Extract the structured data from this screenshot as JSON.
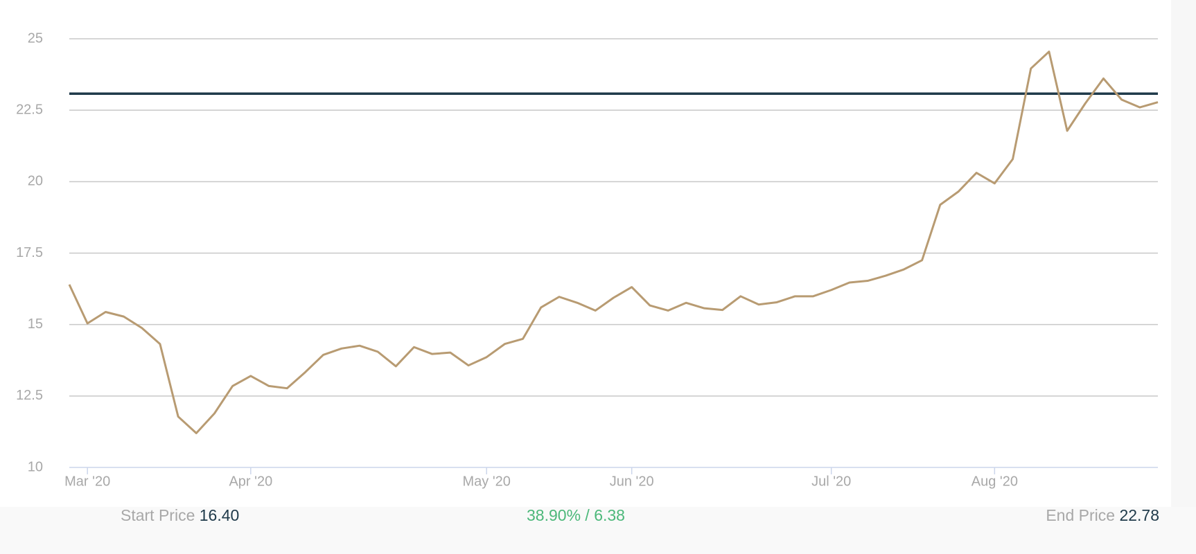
{
  "chart_data": {
    "type": "line",
    "categories": [
      null,
      "Mar '20",
      null,
      null,
      null,
      null,
      null,
      null,
      null,
      null,
      "Apr '20",
      null,
      null,
      null,
      null,
      null,
      null,
      null,
      null,
      null,
      null,
      null,
      null,
      "May '20",
      null,
      null,
      null,
      null,
      null,
      null,
      null,
      "Jun '20",
      null,
      null,
      null,
      null,
      null,
      null,
      null,
      null,
      null,
      null,
      "Jul '20",
      null,
      null,
      null,
      null,
      null,
      null,
      null,
      null,
      "Aug '20",
      null,
      null,
      null,
      null,
      null,
      null,
      null,
      null,
      null
    ],
    "series": [
      {
        "name": "Price",
        "color": "#b89b72",
        "values": [
          16.4,
          15.04,
          15.44,
          15.28,
          14.88,
          14.32,
          11.78,
          11.2,
          11.89,
          12.85,
          13.2,
          12.85,
          12.77,
          13.33,
          13.94,
          14.16,
          14.26,
          14.05,
          13.54,
          14.21,
          13.97,
          14.02,
          13.57,
          13.86,
          14.32,
          14.5,
          15.6,
          15.97,
          15.76,
          15.49,
          15.94,
          16.31,
          15.67,
          15.49,
          15.76,
          15.57,
          15.51,
          15.99,
          15.7,
          15.78,
          15.99,
          15.99,
          16.21,
          16.47,
          16.53,
          16.71,
          16.93,
          17.25,
          19.19,
          19.65,
          20.31,
          19.94,
          20.79,
          23.96,
          24.55,
          21.78,
          22.74,
          23.61,
          22.87,
          22.6,
          22.78
        ]
      }
    ],
    "reference_line": {
      "value": 23.08,
      "color": "#1f3a4a"
    },
    "ylim": [
      10,
      25
    ],
    "yticks": [
      10,
      12.5,
      15,
      17.5,
      20,
      22.5,
      25
    ],
    "grid": true,
    "footer": {
      "start_label": "Start Price",
      "start_value": "16.40",
      "change": "38.90% / 6.38",
      "end_label": "End Price",
      "end_value": "22.78"
    }
  }
}
